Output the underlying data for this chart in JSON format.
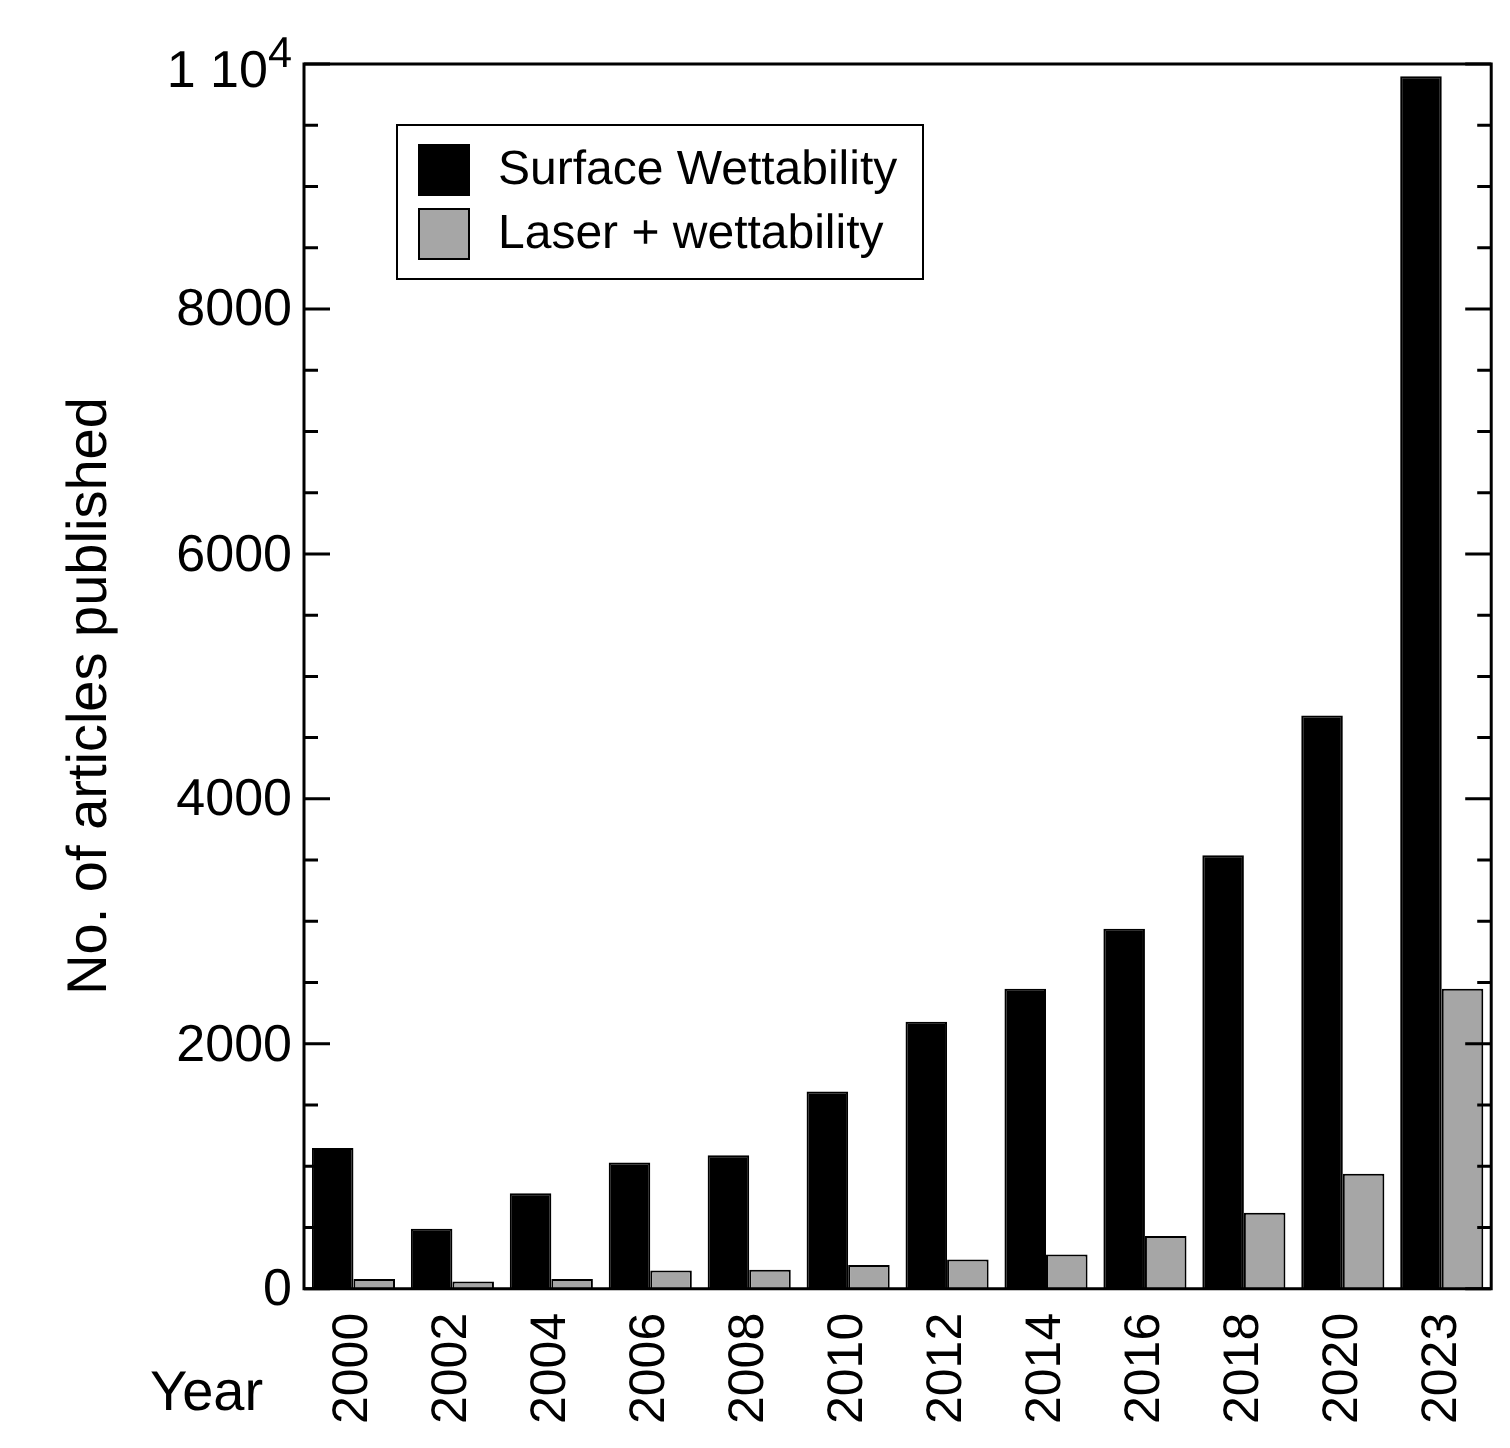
{
  "chart_data": {
    "type": "bar",
    "xlabel": "Year",
    "ylabel": "No. of articles published",
    "categories": [
      "2000",
      "2002",
      "2004",
      "2006",
      "2008",
      "2010",
      "2012",
      "2014",
      "2016",
      "2018",
      "2020",
      "2023"
    ],
    "series": [
      {
        "name": "Surface Wettability",
        "color": "#000000",
        "values": [
          1150,
          490,
          780,
          1030,
          1090,
          1610,
          2180,
          2450,
          2940,
          3540,
          4680,
          9900
        ]
      },
      {
        "name": "Laser + wettability",
        "color": "#a6a6a6",
        "values": [
          80,
          60,
          80,
          150,
          155,
          195,
          240,
          280,
          430,
          620,
          940,
          2450
        ]
      }
    ],
    "ylim": [
      0,
      10000
    ],
    "yticks": [
      0,
      {
        "value": 500,
        "label": null
      },
      {
        "value": 1000,
        "label": null
      },
      {
        "value": 1500,
        "label": null
      },
      2000,
      {
        "value": 2500,
        "label": null
      },
      {
        "value": 3000,
        "label": null
      },
      {
        "value": 3500,
        "label": null
      },
      4000,
      {
        "value": 4500,
        "label": null
      },
      {
        "value": 5000,
        "label": null
      },
      {
        "value": 5500,
        "label": null
      },
      6000,
      {
        "value": 6500,
        "label": null
      },
      {
        "value": 7000,
        "label": null
      },
      {
        "value": 7500,
        "label": null
      },
      8000,
      {
        "value": 8500,
        "label": null
      },
      {
        "value": 9000,
        "label": null
      },
      {
        "value": 9500,
        "label": null
      },
      {
        "value": 10000,
        "label": "1 10$^{4}$"
      }
    ],
    "grid": false,
    "legend": "top left"
  }
}
